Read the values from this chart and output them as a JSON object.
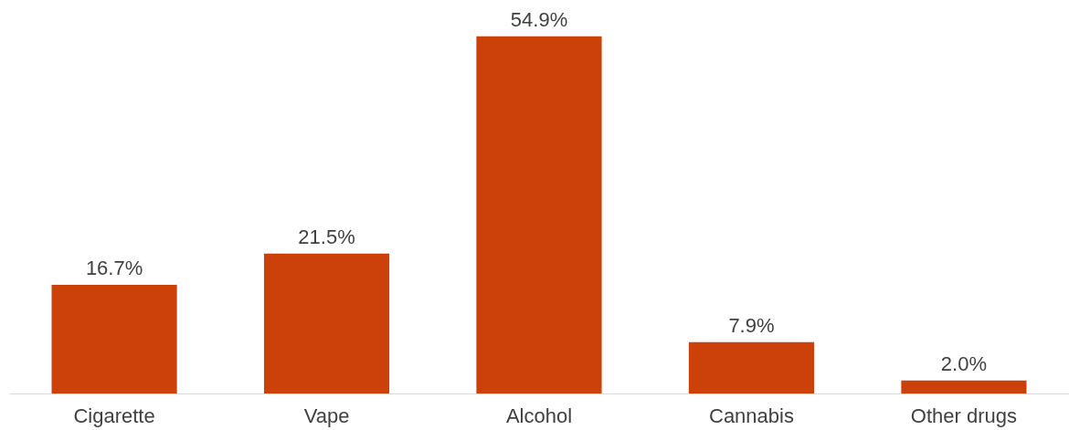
{
  "chart_data": {
    "type": "bar",
    "categories": [
      "Cigarette",
      "Vape",
      "Alcohol",
      "Cannabis",
      "Other drugs"
    ],
    "values": [
      16.7,
      21.5,
      54.9,
      7.9,
      2.0
    ],
    "value_labels": [
      "16.7%",
      "21.5%",
      "54.9%",
      "7.9%",
      "2.0%"
    ],
    "color": "#cc4109"
  }
}
